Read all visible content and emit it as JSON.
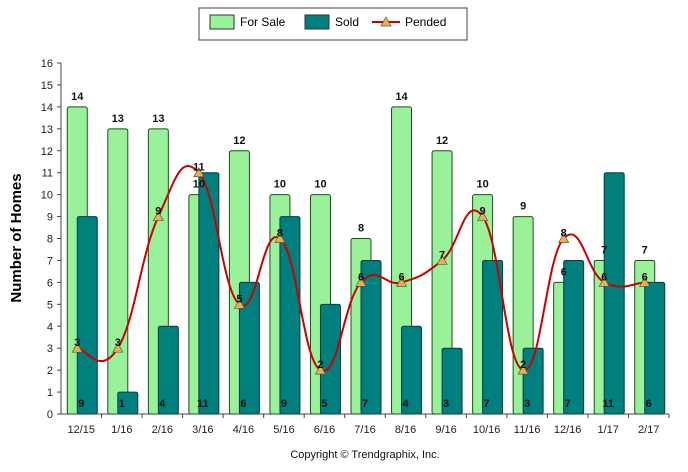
{
  "chart_data": {
    "type": "bar",
    "title": "",
    "xlabel": "",
    "ylabel": "Number of Homes",
    "ylim": [
      0,
      16
    ],
    "yticks": [
      0,
      1,
      2,
      3,
      4,
      5,
      6,
      7,
      8,
      9,
      10,
      11,
      12,
      13,
      14,
      15,
      16
    ],
    "grid": false,
    "legend_position": "top-center",
    "categories": [
      "12/15",
      "1/16",
      "2/16",
      "3/16",
      "4/16",
      "5/16",
      "6/16",
      "7/16",
      "8/16",
      "9/16",
      "10/16",
      "11/16",
      "12/16",
      "1/17",
      "2/17"
    ],
    "series": [
      {
        "name": "For Sale",
        "type": "bar",
        "color": "#99f299",
        "values": [
          14,
          13,
          13,
          10,
          12,
          10,
          10,
          8,
          14,
          12,
          10,
          9,
          6,
          7,
          7
        ]
      },
      {
        "name": "Sold",
        "type": "bar",
        "color": "#007f7f",
        "values": [
          9,
          1,
          4,
          11,
          6,
          9,
          5,
          7,
          4,
          3,
          7,
          3,
          7,
          11,
          6
        ]
      },
      {
        "name": "Pended",
        "type": "line",
        "color": "#cc0000",
        "marker": "triangle",
        "marker_color": "#e8b24a",
        "values": [
          3,
          3,
          9,
          11,
          5,
          8,
          2,
          6,
          6,
          7,
          9,
          2,
          8,
          6,
          6
        ]
      }
    ]
  },
  "copyright": "Copyright © Trendgraphix, Inc."
}
